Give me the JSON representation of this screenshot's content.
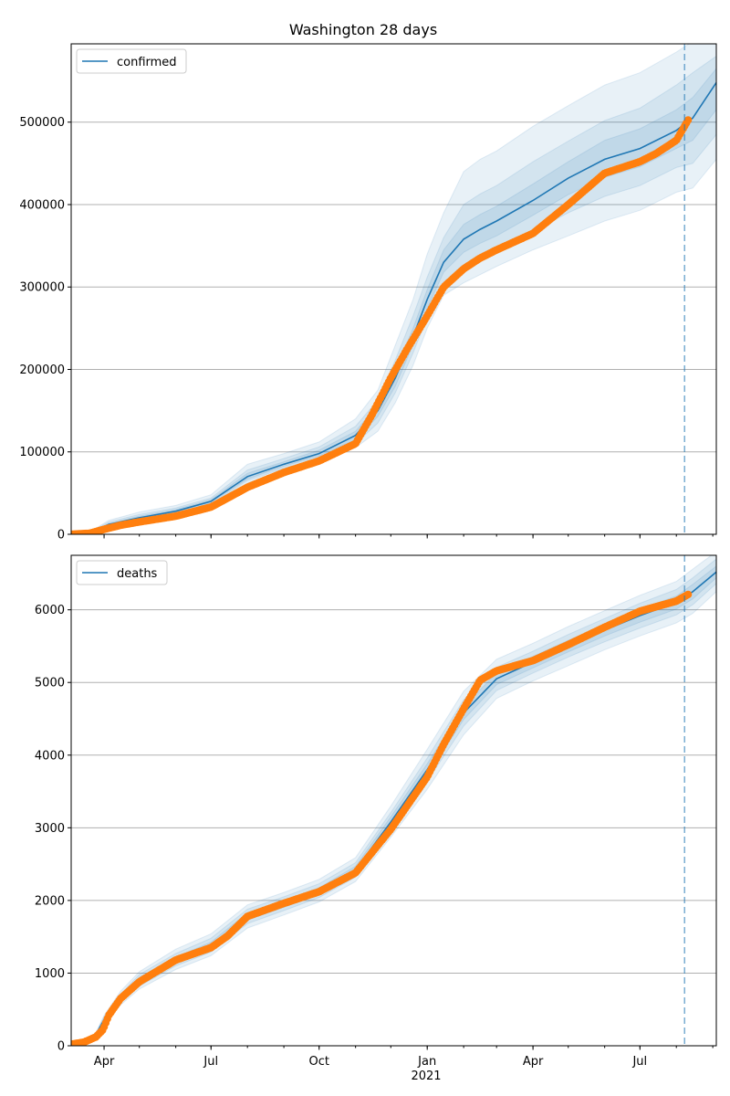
{
  "title": "Washington 28 days",
  "colors": {
    "model": "#1f77b4",
    "observed": "#ff7f0e",
    "band": "#1f77b4",
    "grid": "#b0b0b0",
    "cutoff": "#1f77b4"
  },
  "x_axis": {
    "ticks": [
      {
        "date": "2020-04-01",
        "label": "Apr"
      },
      {
        "date": "2020-07-01",
        "label": "Jul"
      },
      {
        "date": "2020-10-01",
        "label": "Oct"
      },
      {
        "date": "2021-01-01",
        "label": "Jan"
      },
      {
        "date": "2021-04-01",
        "label": "Apr"
      },
      {
        "date": "2021-07-01",
        "label": "Jul"
      }
    ],
    "year_label": "2021",
    "range": [
      "2020-03-04",
      "2021-09-04"
    ],
    "forecast_start": "2021-08-08"
  },
  "chart_data": [
    {
      "type": "line",
      "legend": "confirmed",
      "legend_position": "top-left",
      "grid": "horizontal",
      "ylim": [
        0,
        595000
      ],
      "yticks": [
        "0",
        "100000",
        "200000",
        "300000",
        "400000",
        "500000"
      ],
      "ytick_values": [
        0,
        100000,
        200000,
        300000,
        400000,
        500000
      ],
      "model": {
        "x": [
          "2020-03-04",
          "2020-03-20",
          "2020-04-05",
          "2020-05-01",
          "2020-06-01",
          "2020-07-01",
          "2020-08-01",
          "2020-09-01",
          "2020-10-01",
          "2020-11-01",
          "2020-11-20",
          "2020-12-05",
          "2020-12-20",
          "2021-01-01",
          "2021-01-15",
          "2021-02-01",
          "2021-02-15",
          "2021-03-01",
          "2021-04-01",
          "2021-05-01",
          "2021-06-01",
          "2021-07-01",
          "2021-08-01",
          "2021-08-15",
          "2021-09-04"
        ],
        "y": [
          0,
          1500,
          12000,
          20000,
          28000,
          40000,
          70000,
          85000,
          98000,
          120000,
          150000,
          190000,
          240000,
          285000,
          330000,
          358000,
          370000,
          380000,
          405000,
          432000,
          455000,
          468000,
          490000,
          505000,
          548000
        ],
        "bands": [
          {
            "lower": [
              0,
              200,
              8000,
              15000,
              23000,
              35000,
              62000,
              77000,
              88000,
              105000,
              125000,
              160000,
              205000,
              250000,
              290000,
              305000,
              315000,
              325000,
              345000,
              362000,
              380000,
              393000,
              415000,
              420000,
              455000
            ],
            "upper": [
              0,
              3000,
              17000,
              27000,
              35000,
              48000,
              85000,
              98000,
              112000,
              140000,
              175000,
              230000,
              285000,
              340000,
              390000,
              440000,
              455000,
              465000,
              495000,
              520000,
              545000,
              560000,
              585000,
              598000,
              600000
            ]
          },
          {
            "lower": [
              0,
              600,
              9500,
              17000,
              25000,
              37000,
              65000,
              80000,
              92000,
              110000,
              135000,
              172000,
              220000,
              263000,
              305000,
              325000,
              335000,
              345000,
              368000,
              390000,
              410000,
              423000,
              445000,
              450000,
              485000
            ],
            "upper": [
              0,
              2500,
              15000,
              24000,
              32000,
              44000,
              78000,
              92000,
              106000,
              131000,
              163000,
              212000,
              265000,
              312000,
              360000,
              400000,
              413000,
              423000,
              452000,
              477000,
              502000,
              517000,
              545000,
              560000,
              580000
            ]
          },
          {
            "lower": [
              0,
              1000,
              11000,
              18500,
              26500,
              38500,
              67000,
              82500,
              95000,
              115000,
              143000,
              180000,
              230000,
              274000,
              318000,
              342000,
              353000,
              362000,
              387000,
              412000,
              433000,
              446000,
              468000,
              478000,
              515000
            ],
            "upper": [
              0,
              2000,
              13000,
              22000,
              30000,
              42000,
              74000,
              88000,
              102000,
              125000,
              157000,
              200000,
              250000,
              297000,
              345000,
              376000,
              388000,
              398000,
              425000,
              452000,
              478000,
              492000,
              515000,
              530000,
              565000
            ]
          }
        ]
      },
      "observed": {
        "x": [
          "2020-03-04",
          "2020-03-20",
          "2020-04-01",
          "2020-04-15",
          "2020-05-01",
          "2020-06-01",
          "2020-07-01",
          "2020-08-01",
          "2020-09-01",
          "2020-10-01",
          "2020-11-01",
          "2020-11-15",
          "2020-12-01",
          "2020-12-15",
          "2021-01-01",
          "2021-01-15",
          "2021-02-01",
          "2021-02-15",
          "2021-03-01",
          "2021-04-01",
          "2021-05-01",
          "2021-06-01",
          "2021-07-01",
          "2021-07-15",
          "2021-08-01",
          "2021-08-12"
        ],
        "y": [
          0,
          1200,
          6000,
          11000,
          15000,
          22000,
          33000,
          57000,
          75000,
          89000,
          110000,
          145000,
          190000,
          225000,
          265000,
          300000,
          322000,
          335000,
          345000,
          365000,
          400000,
          438000,
          452000,
          462000,
          478000,
          505000
        ]
      }
    },
    {
      "type": "line",
      "legend": "deaths",
      "legend_position": "top-left",
      "grid": "horizontal",
      "ylim": [
        0,
        6750
      ],
      "yticks": [
        "0",
        "1000",
        "2000",
        "3000",
        "4000",
        "5000",
        "6000"
      ],
      "ytick_values": [
        0,
        1000,
        2000,
        3000,
        4000,
        5000,
        6000
      ],
      "model": {
        "x": [
          "2020-03-04",
          "2020-03-15",
          "2020-03-25",
          "2020-04-01",
          "2020-04-15",
          "2020-05-01",
          "2020-06-01",
          "2020-07-01",
          "2020-08-01",
          "2020-09-01",
          "2020-10-01",
          "2020-11-01",
          "2020-12-01",
          "2021-01-01",
          "2021-02-01",
          "2021-03-01",
          "2021-04-01",
          "2021-05-01",
          "2021-06-01",
          "2021-07-01",
          "2021-08-01",
          "2021-08-15",
          "2021-09-04"
        ],
        "y": [
          20,
          60,
          150,
          360,
          650,
          900,
          1180,
          1380,
          1780,
          1950,
          2130,
          2420,
          3080,
          3800,
          4580,
          5050,
          5280,
          5500,
          5720,
          5920,
          6100,
          6250,
          6520
        ],
        "bands": [
          {
            "lower": [
              20,
              50,
              120,
              300,
              560,
              780,
              1050,
              1240,
              1620,
              1800,
              1980,
              2260,
              2870,
              3530,
              4280,
              4780,
              5020,
              5230,
              5450,
              5640,
              5820,
              5950,
              6250
            ],
            "upper": [
              20,
              70,
              180,
              420,
              750,
              1020,
              1330,
              1540,
              1940,
              2110,
              2290,
              2590,
              3300,
              4080,
              4880,
              5320,
              5540,
              5770,
              5990,
              6200,
              6390,
              6560,
              6800
            ]
          },
          {
            "lower": [
              20,
              53,
              130,
              320,
              590,
              820,
              1100,
              1290,
              1680,
              1860,
              2040,
              2320,
              2950,
              3640,
              4400,
              4890,
              5130,
              5350,
              5560,
              5750,
              5930,
              6070,
              6360
            ],
            "upper": [
              20,
              67,
              170,
              400,
              710,
              980,
              1270,
              1480,
              1880,
              2050,
              2230,
              2520,
              3210,
              3960,
              4760,
              5210,
              5430,
              5660,
              5880,
              6090,
              6280,
              6440,
              6700
            ]
          },
          {
            "lower": [
              20,
              56,
              140,
              340,
              620,
              860,
              1140,
              1335,
              1730,
              1905,
              2085,
              2370,
              3010,
              3720,
              4490,
              4970,
              5200,
              5420,
              5640,
              5830,
              6010,
              6150,
              6440
            ],
            "upper": [
              20,
              64,
              160,
              380,
              680,
              940,
              1220,
              1425,
              1830,
              1995,
              2175,
              2470,
              3150,
              3880,
              4670,
              5130,
              5360,
              5580,
              5800,
              6010,
              6190,
              6350,
              6600
            ]
          }
        ]
      },
      "observed": {
        "x": [
          "2020-03-04",
          "2020-03-15",
          "2020-03-25",
          "2020-03-31",
          "2020-04-05",
          "2020-04-15",
          "2020-05-01",
          "2020-06-01",
          "2020-07-01",
          "2020-07-15",
          "2020-08-01",
          "2020-09-01",
          "2020-10-01",
          "2020-11-01",
          "2020-12-01",
          "2021-01-01",
          "2021-01-15",
          "2021-02-01",
          "2021-02-15",
          "2021-03-01",
          "2021-04-01",
          "2021-05-01",
          "2021-06-01",
          "2021-07-01",
          "2021-08-01",
          "2021-08-12"
        ],
        "y": [
          20,
          50,
          120,
          220,
          420,
          650,
          880,
          1180,
          1350,
          1510,
          1780,
          1960,
          2120,
          2380,
          2980,
          3700,
          4150,
          4640,
          5030,
          5160,
          5300,
          5520,
          5760,
          5980,
          6120,
          6220
        ]
      }
    }
  ]
}
